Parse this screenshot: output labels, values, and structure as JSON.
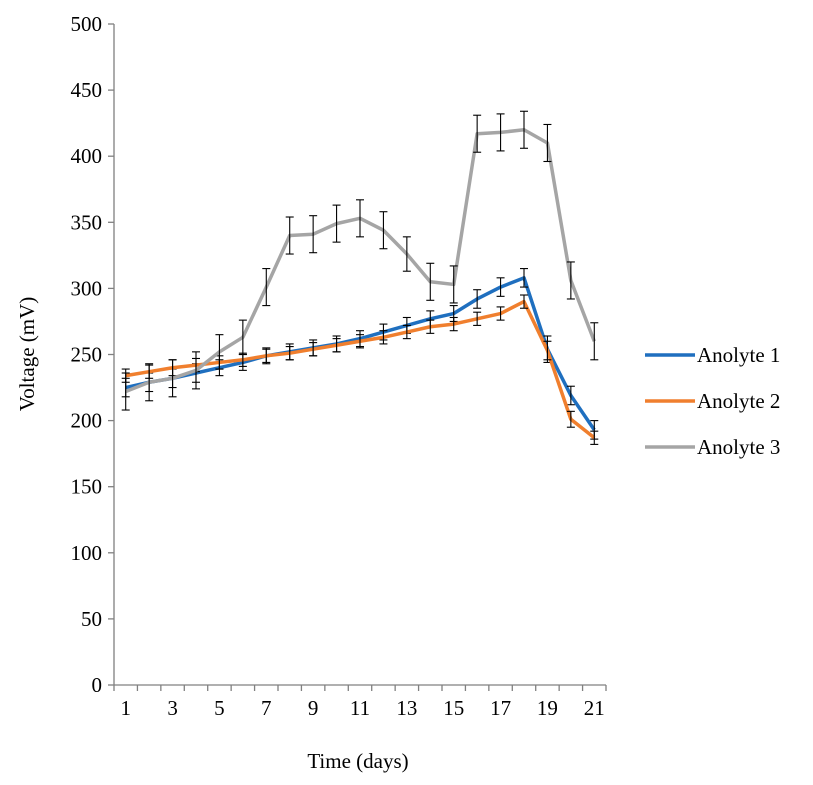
{
  "chart_data": {
    "type": "line",
    "title": "",
    "xlabel": "Time (days)",
    "ylabel": "Voltage (mV)",
    "xlim": [
      1,
      21
    ],
    "ylim": [
      0,
      500
    ],
    "x_ticks": [
      "1",
      "3",
      "5",
      "7",
      "9",
      "11",
      "13",
      "15",
      "17",
      "19",
      "21"
    ],
    "y_ticks": [
      "0",
      "50",
      "100",
      "150",
      "200",
      "250",
      "300",
      "350",
      "400",
      "450",
      "500"
    ],
    "grid": false,
    "legend_position": "right",
    "x": [
      1,
      2,
      3,
      4,
      5,
      6,
      7,
      8,
      9,
      10,
      11,
      12,
      13,
      14,
      15,
      16,
      17,
      18,
      19,
      20,
      21
    ],
    "series": [
      {
        "name": "Anolyte 1",
        "color": "#1F6FBF",
        "values": [
          225,
          229,
          232,
          236,
          240,
          244,
          249,
          252,
          255,
          258,
          262,
          267,
          272,
          277,
          281,
          292,
          301,
          308,
          254,
          219,
          193
        ],
        "errors": [
          7,
          7,
          7,
          7,
          6,
          6,
          6,
          6,
          6,
          6,
          6,
          6,
          6,
          6,
          6,
          7,
          7,
          7,
          10,
          7,
          7
        ]
      },
      {
        "name": "Anolyte 2",
        "color": "#F07F2E",
        "values": [
          234,
          237,
          240,
          242,
          244,
          246,
          249,
          251,
          254,
          257,
          260,
          263,
          267,
          271,
          273,
          277,
          281,
          290,
          253,
          201,
          187
        ],
        "errors": [
          5,
          5,
          6,
          5,
          5,
          5,
          5,
          5,
          5,
          5,
          5,
          5,
          5,
          5,
          5,
          5,
          5,
          5,
          7,
          6,
          5
        ]
      },
      {
        "name": "Anolyte 3",
        "color": "#A5A5A5",
        "values": [
          222,
          229,
          232,
          238,
          252,
          263,
          301,
          340,
          341,
          349,
          353,
          344,
          326,
          305,
          303,
          417,
          418,
          420,
          410,
          306,
          260
        ],
        "errors": [
          14,
          14,
          14,
          14,
          13,
          13,
          14,
          14,
          14,
          14,
          14,
          14,
          13,
          14,
          14,
          14,
          14,
          14,
          14,
          14,
          14
        ]
      }
    ]
  }
}
